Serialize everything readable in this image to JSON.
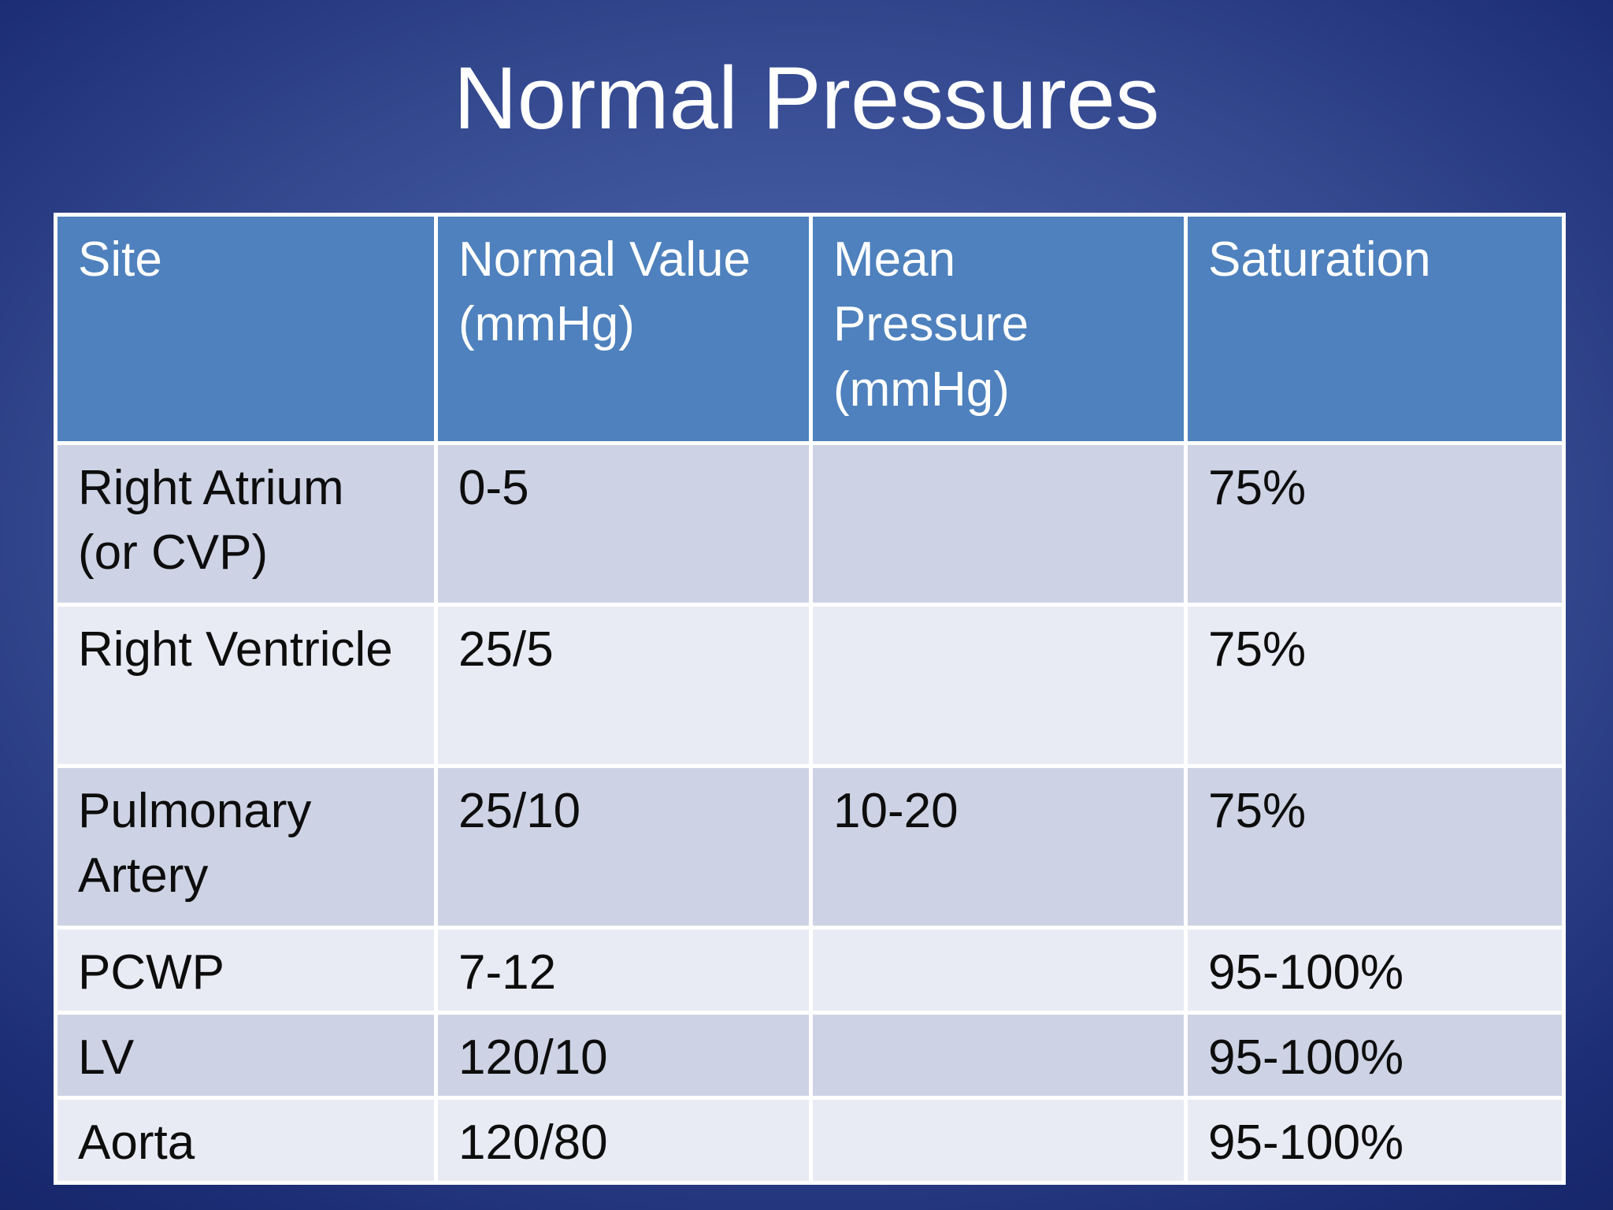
{
  "slide": {
    "title": "Normal Pressures",
    "colors": {
      "header_bg": "#4e81bd",
      "row_dark": "#cdd3e4",
      "row_light": "#e9ebf4",
      "cell_border": "#ffffff",
      "header_text": "#ffffff",
      "body_text": "#0d0d0d",
      "background_center": "#4d69ae",
      "background_edge": "#142263"
    }
  },
  "table": {
    "headers": [
      "Site",
      "Normal Value\n(mmHg)",
      "Mean\nPressure\n(mmHg)",
      "Saturation"
    ],
    "rows": [
      {
        "cells": [
          "Right Atrium\n(or CVP)",
          "0-5",
          "",
          "75%"
        ]
      },
      {
        "cells": [
          "Right Ventricle",
          "25/5",
          "",
          "75%"
        ]
      },
      {
        "cells": [
          "Pulmonary\nArtery",
          "25/10",
          "10-20",
          "75%"
        ]
      },
      {
        "cells": [
          "PCWP",
          "7-12",
          "",
          "95-100%"
        ]
      },
      {
        "cells": [
          "LV",
          "120/10",
          "",
          "95-100%"
        ]
      },
      {
        "cells": [
          "Aorta",
          "120/80",
          "",
          "95-100%"
        ]
      }
    ]
  },
  "chart_data": {
    "type": "table",
    "title": "Normal Pressures",
    "columns": [
      "Site",
      "Normal Value (mmHg)",
      "Mean Pressure (mmHg)",
      "Saturation"
    ],
    "rows": [
      [
        "Right Atrium (or CVP)",
        "0-5",
        "",
        "75%"
      ],
      [
        "Right Ventricle",
        "25/5",
        "",
        "75%"
      ],
      [
        "Pulmonary Artery",
        "25/10",
        "10-20",
        "75%"
      ],
      [
        "PCWP",
        "7-12",
        "",
        "95-100%"
      ],
      [
        "LV",
        "120/10",
        "",
        "95-100%"
      ],
      [
        "Aorta",
        "120/80",
        "",
        "95-100%"
      ]
    ]
  }
}
